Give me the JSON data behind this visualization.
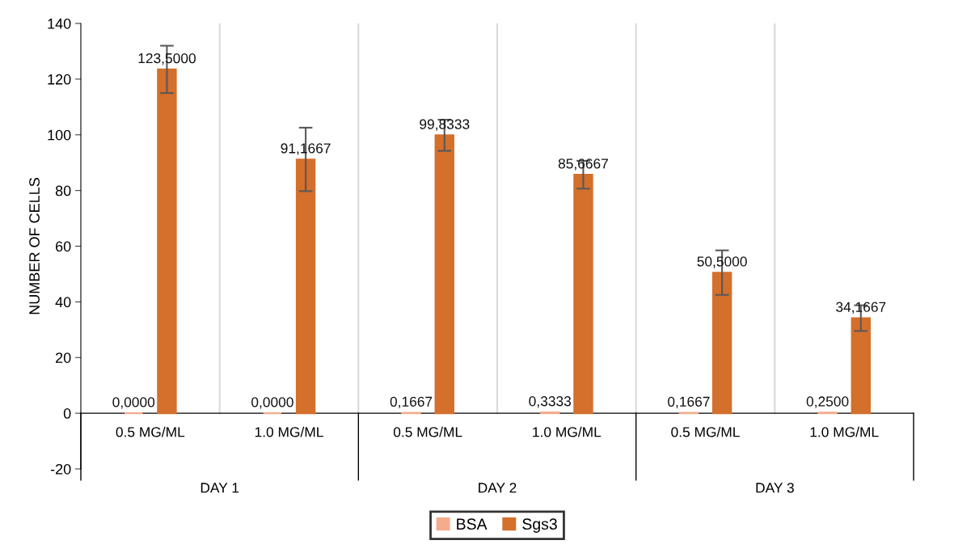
{
  "chart_data": {
    "type": "bar",
    "ylabel": "NUMBER OF CELLS",
    "categories": [
      "0.5 MG/ML",
      "1.0 MG/ML",
      "0.5 MG/ML",
      "1.0 MG/ML",
      "0.5 MG/ML",
      "1.0 MG/ML"
    ],
    "annotations": [
      "DAY 1",
      "DAY 2",
      "DAY 3"
    ],
    "series": [
      {
        "name": "BSA",
        "color": "#f4ac8c",
        "values": [
          0.0,
          0.0,
          0.1667,
          0.3333,
          0.1667,
          0.25
        ],
        "value_labels": [
          "0,0000",
          "0,0000",
          "0,1667",
          "0,3333",
          "0,1667",
          "0,2500"
        ]
      },
      {
        "name": "Sgs3",
        "color": "#d46f2c",
        "values": [
          123.5,
          91.1667,
          99.8333,
          85.6667,
          50.5,
          34.1667
        ],
        "errors": [
          8.5,
          11.4,
          5.6,
          5,
          8,
          4.6
        ],
        "value_labels": [
          "123,5000",
          "91,1667",
          "99,8333",
          "85,6667",
          "50,5000",
          "34,1667"
        ]
      }
    ],
    "ylim": [
      -20,
      140
    ],
    "yticks": [
      -20,
      0,
      20,
      40,
      60,
      80,
      100,
      120,
      140
    ],
    "grid": "x",
    "legend": "bottom"
  }
}
